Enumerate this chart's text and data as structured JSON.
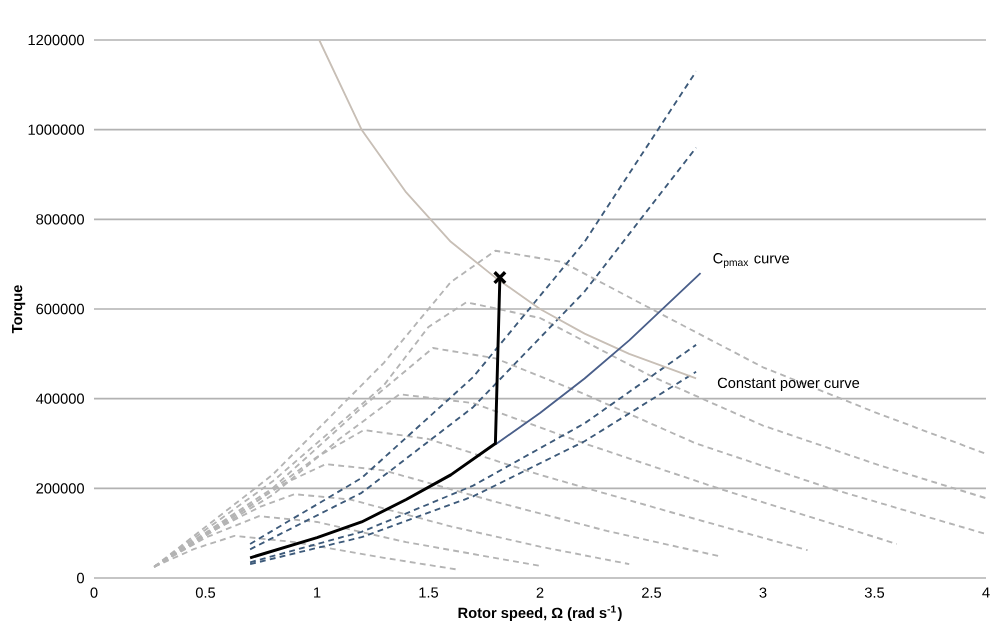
{
  "chart_data": {
    "type": "line",
    "xlabel": "Rotor speed,  Ω (rad s$^{-1}$)",
    "ylabel": "Torque",
    "xlim": [
      0,
      4
    ],
    "xticks": [
      0,
      0.5,
      1,
      1.5,
      2,
      2.5,
      3,
      3.5,
      4
    ],
    "ylim": [
      0,
      1200000
    ],
    "yticks": [
      0,
      200000,
      400000,
      600000,
      800000,
      1000000,
      1200000
    ],
    "grid": "y",
    "marker": "none",
    "series": [
      {
        "color": "#b4b4b4",
        "line_style": "dashed",
        "x": [
          0.27,
          0.8,
          1.3,
          1.6,
          1.8,
          2.1,
          2.5,
          3.0,
          3.5,
          4.0
        ],
        "values": [
          25000,
          230000,
          480000,
          660000,
          730000,
          705000,
          600000,
          470000,
          370000,
          277000
        ]
      },
      {
        "color": "#b4b4b4",
        "line_style": "dashed",
        "x": [
          0.27,
          0.8,
          1.3,
          1.5,
          1.67,
          2.0,
          2.5,
          3.0,
          3.5,
          4.0
        ],
        "values": [
          25000,
          215000,
          430000,
          560000,
          615000,
          580000,
          450000,
          340000,
          255000,
          178000
        ]
      },
      {
        "color": "#b4b4b4",
        "line_style": "dashed",
        "x": [
          0.27,
          0.8,
          1.2,
          1.52,
          1.8,
          2.2,
          2.7,
          3.3,
          4.0
        ],
        "values": [
          25000,
          200000,
          380000,
          513000,
          490000,
          410000,
          300000,
          200000,
          98000
        ]
      },
      {
        "color": "#b4b4b4",
        "line_style": "dashed",
        "x": [
          0.27,
          0.8,
          1.1,
          1.37,
          1.7,
          2.2,
          2.8,
          3.6
        ],
        "values": [
          25000,
          185000,
          310000,
          410000,
          390000,
          300000,
          200000,
          76000
        ]
      },
      {
        "color": "#b4b4b4",
        "line_style": "dashed",
        "x": [
          0.27,
          0.7,
          1.0,
          1.21,
          1.5,
          2.0,
          2.6,
          3.2
        ],
        "values": [
          25000,
          160000,
          270000,
          330000,
          310000,
          230000,
          145000,
          62000
        ]
      },
      {
        "color": "#b4b4b4",
        "line_style": "dashed",
        "x": [
          0.27,
          0.6,
          0.85,
          1.04,
          1.3,
          1.8,
          2.3,
          2.8
        ],
        "values": [
          25000,
          130000,
          210000,
          254000,
          240000,
          170000,
          105000,
          49000
        ]
      },
      {
        "color": "#b4b4b4",
        "line_style": "dashed",
        "x": [
          0.27,
          0.55,
          0.75,
          0.9,
          1.15,
          1.6,
          2.0,
          2.4
        ],
        "values": [
          25000,
          110000,
          160000,
          187000,
          175000,
          115000,
          70000,
          31000
        ]
      },
      {
        "color": "#b4b4b4",
        "line_style": "dashed",
        "x": [
          0.27,
          0.5,
          0.74,
          1.0,
          1.4,
          2.0
        ],
        "values": [
          25000,
          90000,
          138000,
          125000,
          80000,
          27000
        ]
      },
      {
        "color": "#b4b4b4",
        "line_style": "dashed",
        "x": [
          0.27,
          0.45,
          0.63,
          0.9,
          1.3,
          1.64
        ],
        "values": [
          25000,
          65000,
          94000,
          80000,
          45000,
          18000
        ]
      },
      {
        "color": "#3d5a7a",
        "line_style": "dashed",
        "x": [
          0.7,
          1.2,
          1.7,
          2.2,
          2.7
        ],
        "values": [
          76000,
          223000,
          448000,
          750000,
          1130000
        ]
      },
      {
        "color": "#3d5a7a",
        "line_style": "dashed",
        "x": [
          0.7,
          1.2,
          1.7,
          2.2,
          2.7
        ],
        "values": [
          64000,
          190000,
          381000,
          639000,
          960000
        ]
      },
      {
        "color": "#3d5a7a",
        "line_style": "dashed",
        "x": [
          0.7,
          1.2,
          1.7,
          2.2,
          2.7
        ],
        "values": [
          35000,
          103000,
          206000,
          345000,
          520000
        ]
      },
      {
        "color": "#3d5a7a",
        "line_style": "dashed",
        "x": [
          0.7,
          1.2,
          1.7,
          2.2,
          2.7
        ],
        "values": [
          31000,
          91000,
          182000,
          305000,
          460000
        ]
      },
      {
        "color": "#c8bfb6",
        "line_style": "solid",
        "x": [
          1.01,
          1.2,
          1.4,
          1.6,
          1.8,
          2.0,
          2.2,
          2.4,
          2.7
        ],
        "values": [
          1200000,
          1000000,
          860000,
          750000,
          670000,
          600000,
          545000,
          500000,
          445000
        ]
      },
      {
        "color": "#4a5f8a",
        "line_style": "solid",
        "x": [
          1.8,
          2.0,
          2.2,
          2.4,
          2.72
        ],
        "values": [
          298000,
          368000,
          445000,
          530000,
          680000
        ]
      },
      {
        "color": "#000000",
        "line_style": "solid",
        "x": [
          0.7,
          1.0,
          1.2,
          1.4,
          1.6,
          1.8,
          1.82
        ],
        "values": [
          45000,
          90000,
          125000,
          175000,
          230000,
          300000,
          670000
        ]
      },
      {
        "type": "scatter",
        "marker": "cross",
        "color": "#000000",
        "x": [
          1.82
        ],
        "values": [
          670000
        ]
      }
    ],
    "annotations": [
      "C$_{pmax}$ curve",
      "Constant power curve"
    ]
  }
}
